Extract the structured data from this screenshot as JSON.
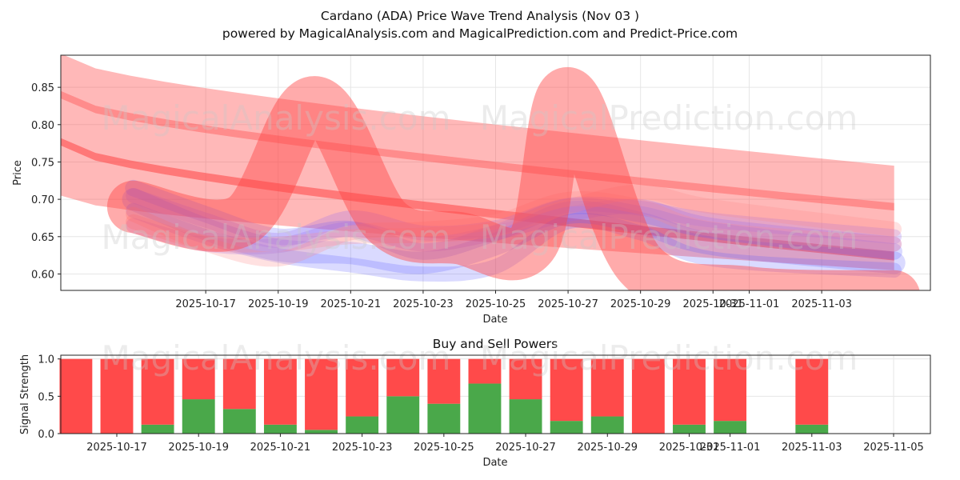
{
  "header": {
    "title": "Cardano (ADA) Price Wave Trend Analysis (Nov 03 )",
    "subtitle": "powered by MagicalAnalysis.com and MagicalPrediction.com and Predict-Price.com"
  },
  "watermarks": [
    "MagicalAnalysis.com",
    "MagicalPrediction.com"
  ],
  "colors": {
    "red": "#ff4444",
    "blue": "#5555ff",
    "purple": "#9966ee",
    "buy": "#4aa84a",
    "sell": "#ff4a4a",
    "grid": "#e6e6e6"
  },
  "chart_data": [
    {
      "type": "area",
      "title": "",
      "xlabel": "Date",
      "ylabel": "Price",
      "xlim": [
        "2025-10-13",
        "2025-11-06"
      ],
      "ylim": [
        0.578,
        0.893
      ],
      "grid": true,
      "x_tick_labels": [
        "2025-10-17",
        "2025-10-19",
        "2025-10-21",
        "2025-10-23",
        "2025-10-25",
        "2025-10-27",
        "2025-10-29",
        "2025-10-31",
        "2025-11-01",
        "2025-11-03"
      ],
      "y_tick_labels": [
        "0.60",
        "0.65",
        "0.70",
        "0.75",
        "0.80",
        "0.85"
      ],
      "red_trend_bands": [
        {
          "name": "upper trend band",
          "start": "2025-10-13",
          "end": "2025-11-05",
          "start_low": 0.835,
          "start_high": 0.895,
          "end_low": 0.685,
          "end_high": 0.745
        },
        {
          "name": "main trend band",
          "start": "2025-10-13",
          "end": "2025-11-05",
          "start_low": 0.705,
          "start_high": 0.845,
          "end_low": 0.605,
          "end_high": 0.695
        },
        {
          "name": "lower trend line",
          "start": "2025-10-13",
          "end": "2025-11-05",
          "start_low": 0.772,
          "start_high": 0.782,
          "end_low": 0.618,
          "end_high": 0.63
        }
      ],
      "red_wave_bands": [
        {
          "name": "wave band 1",
          "points": [
            [
              "2025-10-15",
              0.69
            ],
            [
              "2025-10-18",
              0.672
            ],
            [
              "2025-10-20",
              0.83
            ],
            [
              "2025-10-22",
              0.67
            ],
            [
              "2025-10-24",
              0.648
            ],
            [
              "2025-10-26",
              0.64
            ],
            [
              "2025-10-27",
              0.842
            ],
            [
              "2025-10-29",
              0.612
            ],
            [
              "2025-11-01",
              0.575
            ],
            [
              "2025-11-05",
              0.57
            ]
          ],
          "thickness": 0.07
        }
      ],
      "blue_wave_bands": [
        {
          "name": "blue band 1",
          "points": [
            [
              "2025-10-15",
              0.7
            ],
            [
              "2025-10-17",
              0.66
            ],
            [
              "2025-10-19",
              0.632
            ],
            [
              "2025-10-21",
              0.628
            ],
            [
              "2025-10-23",
              0.615
            ],
            [
              "2025-10-25",
              0.64
            ],
            [
              "2025-10-27",
              0.682
            ],
            [
              "2025-10-29",
              0.668
            ],
            [
              "2025-10-31",
              0.64
            ],
            [
              "2025-11-05",
              0.615
            ]
          ],
          "thickness": 0.03
        },
        {
          "name": "blue band 2",
          "points": [
            [
              "2025-10-15",
              0.715
            ],
            [
              "2025-10-17",
              0.68
            ],
            [
              "2025-10-19",
              0.65
            ],
            [
              "2025-10-21",
              0.66
            ],
            [
              "2025-10-23",
              0.63
            ],
            [
              "2025-10-25",
              0.655
            ],
            [
              "2025-10-27",
              0.69
            ],
            [
              "2025-10-29",
              0.68
            ],
            [
              "2025-10-31",
              0.658
            ],
            [
              "2025-11-05",
              0.63
            ]
          ],
          "thickness": 0.022
        },
        {
          "name": "blue band 3",
          "points": [
            [
              "2025-10-15",
              0.685
            ],
            [
              "2025-10-17",
              0.65
            ],
            [
              "2025-10-19",
              0.625
            ],
            [
              "2025-10-21",
              0.612
            ],
            [
              "2025-10-23",
              0.6
            ],
            [
              "2025-10-25",
              0.61
            ],
            [
              "2025-10-27",
              0.67
            ],
            [
              "2025-10-29",
              0.655
            ],
            [
              "2025-10-31",
              0.62
            ],
            [
              "2025-11-05",
              0.605
            ]
          ],
          "thickness": 0.02
        }
      ],
      "purple_wave_bands": [
        {
          "name": "purple band 1",
          "points": [
            [
              "2025-10-15",
              0.705
            ],
            [
              "2025-10-17",
              0.672
            ],
            [
              "2025-10-19",
              0.645
            ],
            [
              "2025-10-21",
              0.675
            ],
            [
              "2025-10-23",
              0.655
            ],
            [
              "2025-10-25",
              0.662
            ],
            [
              "2025-10-27",
              0.692
            ],
            [
              "2025-10-29",
              0.688
            ],
            [
              "2025-10-31",
              0.672
            ],
            [
              "2025-11-05",
              0.65
            ]
          ],
          "thickness": 0.02
        },
        {
          "name": "purple band 2",
          "points": [
            [
              "2025-10-15",
              0.665
            ],
            [
              "2025-10-17",
              0.64
            ],
            [
              "2025-10-19",
              0.638
            ],
            [
              "2025-10-21",
              0.66
            ],
            [
              "2025-10-23",
              0.64
            ],
            [
              "2025-10-25",
              0.655
            ],
            [
              "2025-10-27",
              0.68
            ],
            [
              "2025-10-29",
              0.69
            ],
            [
              "2025-10-31",
              0.665
            ],
            [
              "2025-11-05",
              0.64
            ]
          ],
          "thickness": 0.02
        }
      ],
      "pink_wave_bands": [
        {
          "name": "pink band 1",
          "points": [
            [
              "2025-10-15",
              0.68
            ],
            [
              "2025-10-17",
              0.64
            ],
            [
              "2025-10-19",
              0.62
            ],
            [
              "2025-10-21",
              0.655
            ],
            [
              "2025-10-23",
              0.66
            ],
            [
              "2025-10-25",
              0.67
            ],
            [
              "2025-10-27",
              0.7
            ],
            [
              "2025-10-29",
              0.69
            ],
            [
              "2025-10-31",
              0.66
            ],
            [
              "2025-11-05",
              0.64
            ]
          ],
          "thickness": 0.02
        },
        {
          "name": "pink band 2",
          "points": [
            [
              "2025-10-15",
              0.67
            ],
            [
              "2025-10-17",
              0.642
            ],
            [
              "2025-10-19",
              0.64
            ],
            [
              "2025-10-21",
              0.65
            ],
            [
              "2025-10-23",
              0.652
            ],
            [
              "2025-10-25",
              0.66
            ],
            [
              "2025-10-27",
              0.69
            ],
            [
              "2025-10-29",
              0.71
            ],
            [
              "2025-10-31",
              0.69
            ],
            [
              "2025-11-05",
              0.66
            ]
          ],
          "thickness": 0.02
        }
      ]
    },
    {
      "type": "bar",
      "title": "Buy and Sell Powers",
      "xlabel": "Date",
      "ylabel": "Signal Strength",
      "xlim": [
        "2025-10-15",
        "2025-11-05"
      ],
      "ylim": [
        0,
        1.05
      ],
      "grid": true,
      "x_tick_labels": [
        "2025-10-17",
        "2025-10-19",
        "2025-10-21",
        "2025-10-23",
        "2025-10-25",
        "2025-10-27",
        "2025-10-29",
        "2025-10-31",
        "2025-11-01",
        "2025-11-03",
        "2025-11-05"
      ],
      "y_tick_labels": [
        "0.0",
        "0.5",
        "1.0"
      ],
      "categories": [
        "2025-10-16",
        "2025-10-17",
        "2025-10-18",
        "2025-10-19",
        "2025-10-20",
        "2025-10-21",
        "2025-10-22",
        "2025-10-23",
        "2025-10-24",
        "2025-10-25",
        "2025-10-26",
        "2025-10-27",
        "2025-10-28",
        "2025-10-29",
        "2025-10-30",
        "2025-10-31",
        "2025-11-01",
        "2025-11-03"
      ],
      "series": [
        {
          "name": "Buy",
          "values": [
            0.0,
            0.0,
            0.12,
            0.46,
            0.33,
            0.12,
            0.05,
            0.23,
            0.5,
            0.4,
            0.67,
            0.46,
            0.17,
            0.23,
            0.0,
            0.12,
            0.17,
            0.12
          ]
        },
        {
          "name": "Sell",
          "values": [
            1.0,
            1.0,
            0.88,
            0.54,
            0.67,
            0.88,
            0.95,
            0.77,
            0.5,
            0.6,
            0.33,
            0.54,
            0.83,
            0.77,
            1.0,
            0.88,
            0.83,
            0.88
          ]
        }
      ]
    }
  ]
}
